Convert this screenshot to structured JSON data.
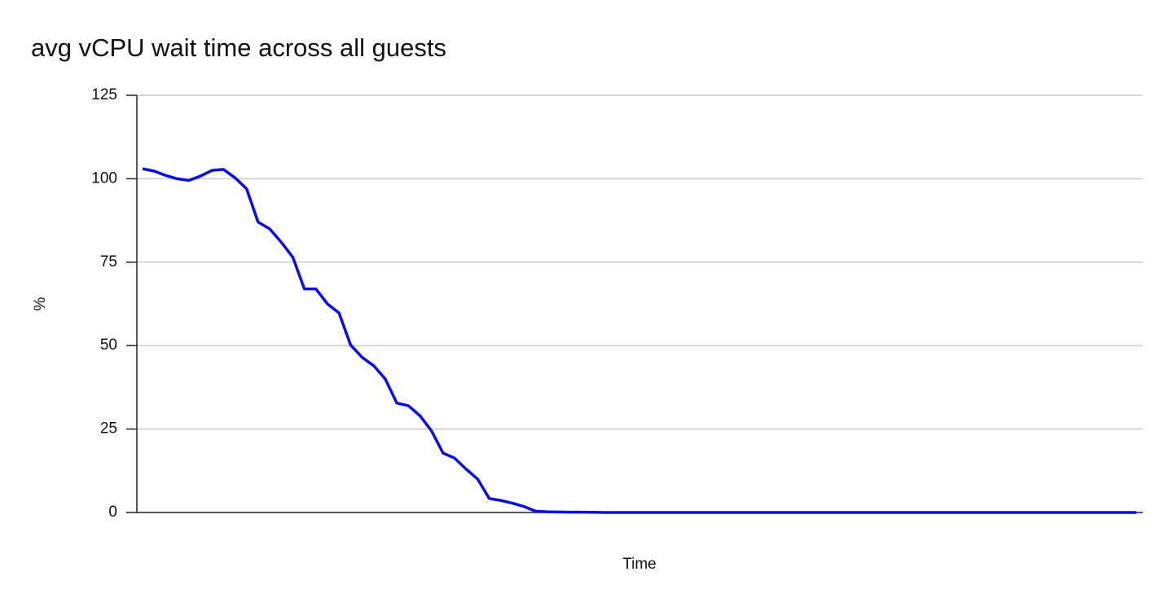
{
  "chart_data": {
    "type": "line",
    "title": "avg vCPU wait time across all guests",
    "x_label": "Time",
    "y_label": "%",
    "series": [
      {
        "color": "#0b0bee",
        "values": [
          103,
          102.3,
          101,
          100,
          99.5,
          100.8,
          102.5,
          102.8,
          100.3,
          97,
          87,
          85,
          81,
          76.5,
          67,
          67,
          62.5,
          59.8,
          50.2,
          46.5,
          44,
          40,
          32.8,
          32,
          29,
          24.5,
          17.8,
          16.3,
          13,
          10,
          4.2,
          3.6,
          2.8,
          1.8,
          0.4,
          0.2,
          0.15,
          0.1,
          0.1,
          0.05,
          0,
          0,
          0,
          0,
          0,
          0,
          0,
          0,
          0,
          0,
          0,
          0,
          0,
          0,
          0,
          0,
          0,
          0,
          0,
          0,
          0,
          0,
          0,
          0,
          0,
          0,
          0,
          0,
          0,
          0,
          0,
          0,
          0,
          0,
          0,
          0,
          0,
          0,
          0,
          0,
          0,
          0,
          0,
          0,
          0,
          0,
          0
        ]
      }
    ],
    "ylim": [
      0,
      125
    ],
    "yticks": [
      0,
      25,
      50,
      75,
      100,
      125
    ],
    "grid": true
  }
}
